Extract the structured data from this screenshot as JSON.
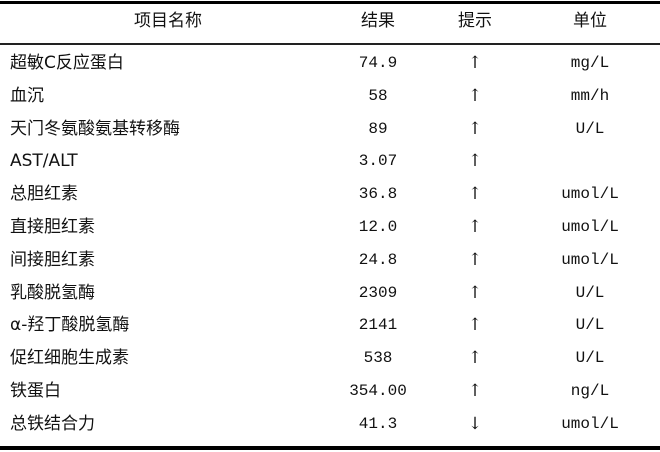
{
  "table": {
    "headers": {
      "name": "项目名称",
      "result": "结果",
      "hint": "提示",
      "unit": "单位"
    },
    "rows": [
      {
        "name": "超敏C反应蛋白",
        "result": "74.9",
        "hint": "↑",
        "unit": "mg/L"
      },
      {
        "name": "血沉",
        "result": "58",
        "hint": "↑",
        "unit": "mm/h"
      },
      {
        "name": "天门冬氨酸氨基转移酶",
        "result": "89",
        "hint": "↑",
        "unit": "U/L"
      },
      {
        "name": "AST/ALT",
        "result": "3.07",
        "hint": "↑",
        "unit": ""
      },
      {
        "name": "总胆红素",
        "result": "36.8",
        "hint": "↑",
        "unit": "umol/L"
      },
      {
        "name": "直接胆红素",
        "result": "12.0",
        "hint": "↑",
        "unit": "umol/L"
      },
      {
        "name": "间接胆红素",
        "result": "24.8",
        "hint": "↑",
        "unit": "umol/L"
      },
      {
        "name": "乳酸脱氢酶",
        "result": "2309",
        "hint": "↑",
        "unit": "U/L"
      },
      {
        "name": "α-羟丁酸脱氢酶",
        "result": "2141",
        "hint": "↑",
        "unit": "U/L"
      },
      {
        "name": "促红细胞生成素",
        "result": "538",
        "hint": "↑",
        "unit": "U/L"
      },
      {
        "name": "铁蛋白",
        "result": "354.00",
        "hint": "↑",
        "unit": "ng/L"
      },
      {
        "name": "总铁结合力",
        "result": "41.3",
        "hint": "↓",
        "unit": "umol/L"
      }
    ]
  }
}
